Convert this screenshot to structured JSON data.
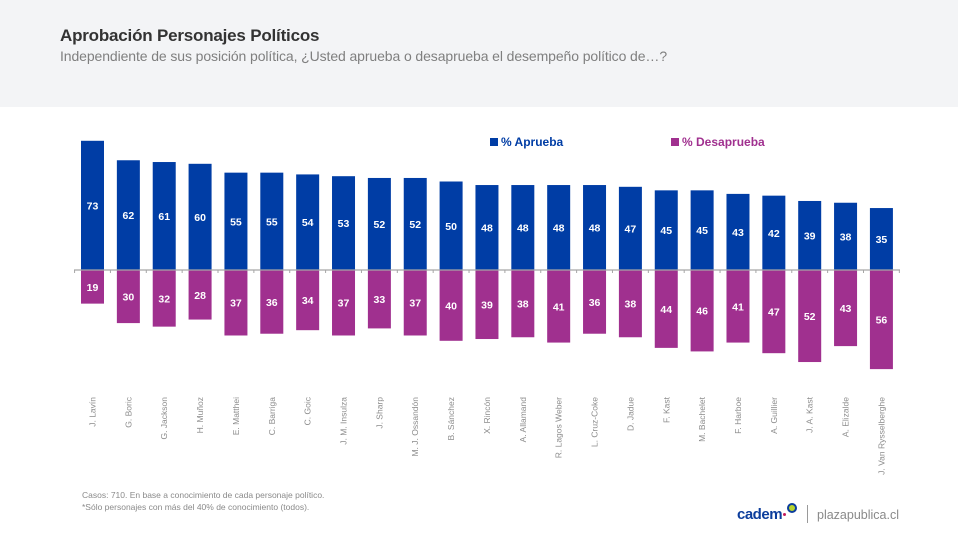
{
  "header": {
    "title": "Aprobación Personajes Políticos",
    "subtitle": "Independiente de sus posición política, ¿Usted aprueba o desaprueba el desempeño político de…?"
  },
  "colors": {
    "approve": "#003DA5",
    "disapprove": "#A0308F",
    "label_text": "#ffffff",
    "axis": "#A6A6A6",
    "category_text": "#8C8C8C"
  },
  "chart_data": {
    "type": "bar",
    "title": "Aprobación Personajes Políticos",
    "xlabel": "",
    "ylabel": "",
    "legend_position": "top-right",
    "grid": false,
    "categories": [
      "J. Lavín",
      "G. Boric",
      "G. Jackson",
      "H. Muñoz",
      "E. Matthei",
      "C. Barriga",
      "C. Goic",
      "J. M. Insulza",
      "J. Sharp",
      "M. J. Ossandón",
      "B. Sánchez",
      "X. Rincón",
      "A. Allamand",
      "R. Lagos Weber",
      "L. Cruz-Coke",
      "D. Jadue",
      "F. Kast",
      "M. Bachelet",
      "F. Harboe",
      "A. Guillier",
      "J. A. Kast",
      "A. Elizalde",
      "J. Van Rysselberghe"
    ],
    "series": [
      {
        "name": "% Aprueba",
        "values": [
          73,
          62,
          61,
          60,
          55,
          55,
          54,
          53,
          52,
          52,
          50,
          48,
          48,
          48,
          48,
          47,
          45,
          45,
          43,
          42,
          39,
          38,
          35
        ]
      },
      {
        "name": "% Desaprueba",
        "values": [
          19,
          30,
          32,
          28,
          37,
          36,
          34,
          37,
          33,
          37,
          40,
          39,
          38,
          41,
          36,
          38,
          44,
          46,
          41,
          47,
          52,
          43,
          56
        ]
      }
    ],
    "ylim": [
      -56,
      73
    ]
  },
  "legend": {
    "approve_label": "% Aprueba",
    "disapprove_label": "% Desaprueba"
  },
  "footer": {
    "note1": "Casos: 710. En base a conocimiento de cada personaje político.",
    "note2": "*Sólo personajes con más del 40% de conocimiento (todos).",
    "brand": "cadem",
    "site": "plazapublica.cl"
  }
}
